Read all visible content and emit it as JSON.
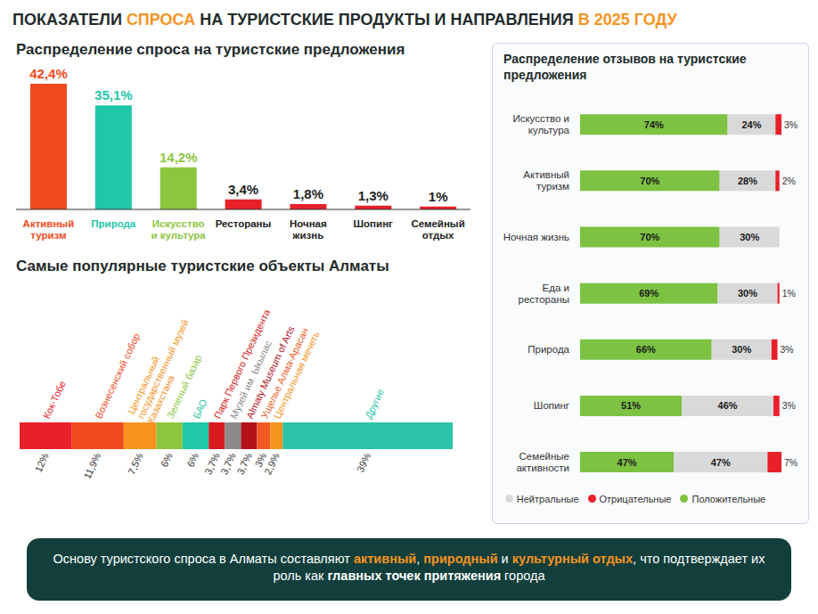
{
  "title": "ПОКАЗАТЕЛИ СПРОСА НА ТУРИСТСКИЕ ПРОДУКТЫ И НАПРАВЛЕНИЯ В 2025 ГОДУ",
  "title_highlights": [
    "СПРОСА",
    "В 2025 ГОДУ"
  ],
  "footer": "Основу туристского спроса в Алматы составляют активный, природный и культурный отдых, что подтверждает их роль как главных точек притяжения города",
  "footer_highlights": [
    "активный",
    "природный",
    "культурный отдых"
  ],
  "footer_bold": [
    "главных точек притяжения"
  ],
  "chart_data": [
    {
      "type": "bar",
      "title": "Распределение спроса на туристские предложения",
      "categories": [
        "Активный туризм",
        "Природа",
        "Искусство и культура",
        "Рестораны",
        "Ночная жизнь",
        "Шопинг",
        "Семейный отдых"
      ],
      "values": [
        42.4,
        35.1,
        14.2,
        3.4,
        1.8,
        1.3,
        1
      ],
      "value_labels": [
        "42,4%",
        "35,1%",
        "14,2%",
        "3,4%",
        "1,8%",
        "1,3%",
        "1%"
      ],
      "colors": [
        "#f04a1e",
        "#1fc8a9",
        "#8cc63f",
        "#e8202a",
        "#e8202a",
        "#e8202a",
        "#e8202a"
      ],
      "data_labels": true,
      "tick_labels": "x"
    },
    {
      "type": "bar",
      "orientation": "horizontal",
      "stacked": true,
      "title": "Распределение отзывов на туристские предложения",
      "categories": [
        "Искусство и культура",
        "Активный туризм",
        "Ночная жизнь",
        "Еда и рестораны",
        "Природа",
        "Шопинг",
        "Семейные активности"
      ],
      "series": [
        {
          "name": "Положительные",
          "color": "#7dc242",
          "values": [
            74,
            70,
            70,
            69,
            66,
            51,
            47
          ],
          "value_labels": [
            "74%",
            "70%",
            "70%",
            "69%",
            "66%",
            "51%",
            "47%"
          ]
        },
        {
          "name": "Нейтральные",
          "color": "#d9d9d9",
          "values": [
            24,
            28,
            30,
            30,
            30,
            46,
            47
          ],
          "value_labels": [
            "24%",
            "28%",
            "30%",
            "30%",
            "30%",
            "46%",
            "47%"
          ]
        },
        {
          "name": "Отрицательные",
          "color": "#e8202a",
          "values": [
            3,
            2,
            null,
            1,
            3,
            3,
            7
          ],
          "value_labels": [
            "3%",
            "2%",
            null,
            "1%",
            "3%",
            "3%",
            "7%"
          ]
        }
      ],
      "data_labels": true,
      "tick_labels": "y",
      "legend": "bottom"
    },
    {
      "type": "bar",
      "orientation": "horizontal",
      "stacked": true,
      "title": "Самые популярные туристские объекты Алматы",
      "categories": [
        null
      ],
      "series": [
        {
          "name": "Кок-Тобе",
          "color": "#e8202a",
          "values": [
            12
          ],
          "value_labels": [
            "12%"
          ]
        },
        {
          "name": "Вознесенский собор",
          "color": "#f04a1e",
          "values": [
            11.9
          ],
          "value_labels": [
            "11,9%"
          ]
        },
        {
          "name": "Центральный государственный музей Казахстана",
          "color": "#f7931e",
          "values": [
            7.5
          ],
          "value_labels": [
            "7,5%"
          ]
        },
        {
          "name": "Зеленый базар",
          "color": "#8cc63f",
          "values": [
            6
          ],
          "value_labels": [
            "6%"
          ]
        },
        {
          "name": "БАО",
          "color": "#1fc8a9",
          "values": [
            6
          ],
          "value_labels": [
            "6%"
          ]
        },
        {
          "name": "Парк Первого Президента",
          "color": "#d71920",
          "values": [
            3.7
          ],
          "value_labels": [
            "3,7%"
          ]
        },
        {
          "name": "Музей им. Ыкылас",
          "color": "#8a8a8a",
          "values": [
            3.7
          ],
          "value_labels": [
            "3,7%"
          ]
        },
        {
          "name": "Almaty Museum of Arts",
          "color": "#b5121b",
          "values": [
            3.7
          ],
          "value_labels": [
            "3,7%"
          ]
        },
        {
          "name": "Ущелье Алма-Арасан",
          "color": "#f15a24",
          "values": [
            3
          ],
          "value_labels": [
            "3%"
          ]
        },
        {
          "name": "Центральная мечеть",
          "color": "#f7941d",
          "values": [
            2.9
          ],
          "value_labels": [
            "2,9%"
          ]
        },
        {
          "name": "Другие",
          "color": "#2bc4a9",
          "values": [
            39
          ],
          "value_labels": [
            "39%"
          ]
        }
      ],
      "data_labels": true,
      "tick_labels": false
    }
  ]
}
